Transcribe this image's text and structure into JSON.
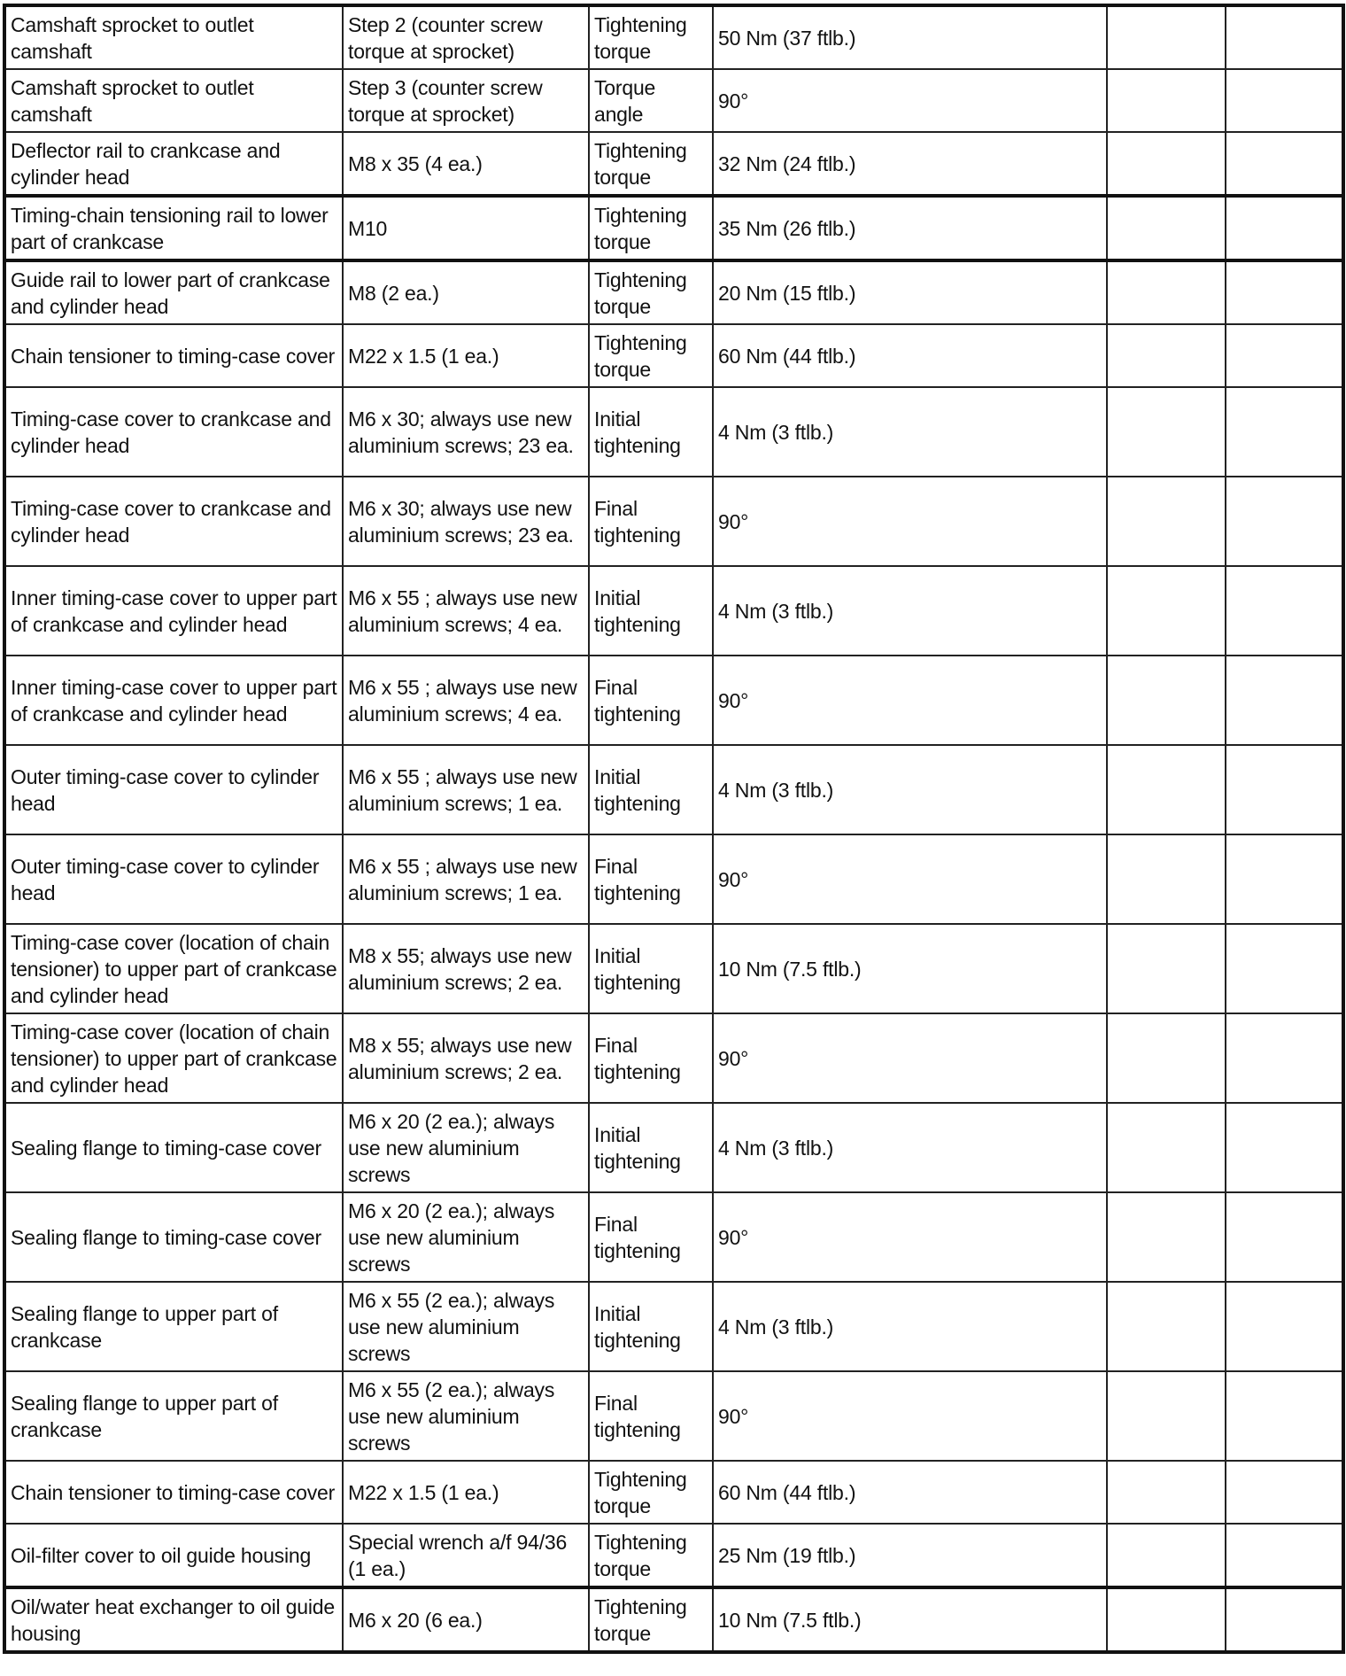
{
  "table": {
    "rows": [
      {
        "component": "Camshaft sprocket to outlet camshaft",
        "spec": "Step 2 (counter screw torque at sprocket)",
        "type": "Tightening torque",
        "value": "50 Nm (37 ftlb.)",
        "lines": 2
      },
      {
        "component": "Camshaft sprocket to outlet camshaft",
        "spec": "Step 3 (counter screw torque at sprocket)",
        "type": "Torque angle",
        "value": "90°",
        "lines": 2
      },
      {
        "component": "Deflector rail to crankcase and cylinder head",
        "spec": "M8 x 35 (4 ea.)",
        "type": "Tightening torque",
        "value": "32 Nm (24 ftlb.)",
        "lines": 2
      },
      {
        "component": "Timing-chain tensioning rail to lower part of crankcase",
        "spec": "M10",
        "type": "Tightening torque",
        "value": "35 Nm (26 ftlb.)",
        "lines": 2,
        "thick": true
      },
      {
        "component": "Guide rail to lower part of crankcase and cylinder head",
        "spec": "M8 (2 ea.)",
        "type": "Tightening torque",
        "value": "20 Nm (15 ftlb.)",
        "lines": 2,
        "thick": true
      },
      {
        "component": "Chain tensioner to timing-case cover",
        "spec": "M22 x 1.5 (1 ea.)",
        "type": "Tightening torque",
        "value": "60 Nm (44 ftlb.)",
        "lines": 2
      },
      {
        "component": "Timing-case cover to crankcase and cylinder head",
        "spec": "M6 x 30; always use new aluminium screws; 23 ea.",
        "type": "Initial tightening",
        "value": "4 Nm (3 ftlb.)",
        "lines": 3
      },
      {
        "component": "Timing-case cover to crankcase and cylinder head",
        "spec": "M6 x 30; always use new aluminium screws; 23 ea.",
        "type": "Final tightening",
        "value": "90°",
        "lines": 3
      },
      {
        "component": "Inner timing-case cover to upper part of crankcase and cylinder head",
        "spec": "M6 x 55 ; always use new aluminium screws; 4 ea.",
        "type": "Initial tightening",
        "value": "4 Nm (3 ftlb.)",
        "lines": 3
      },
      {
        "component": "Inner timing-case cover to upper part of crankcase and cylinder head",
        "spec": "M6 x 55 ; always use new aluminium screws; 4 ea.",
        "type": "Final tightening",
        "value": "90°",
        "lines": 3
      },
      {
        "component": "Outer timing-case cover to cylinder head",
        "spec": "M6 x 55 ; always use new aluminium screws; 1 ea.",
        "type": "Initial tightening",
        "value": "4 Nm (3 ftlb.)",
        "lines": 3
      },
      {
        "component": "Outer timing-case cover to cylinder head",
        "spec": "M6 x 55 ; always use new aluminium screws; 1 ea.",
        "type": "Final tightening",
        "value": "90°",
        "lines": 3
      },
      {
        "component": "Timing-case cover (location of chain tensioner) to upper part of crankcase and cylinder head",
        "spec": "M8 x 55; always use new aluminium screws; 2 ea.",
        "type": "Initial tightening",
        "value": "10 Nm (7.5 ftlb.)",
        "lines": 3
      },
      {
        "component": "Timing-case cover (location of chain tensioner) to upper part of crankcase and cylinder head",
        "spec": "M8 x 55; always use new aluminium screws; 2 ea.",
        "type": "Final tightening",
        "value": "90°",
        "lines": 3
      },
      {
        "component": "Sealing flange to timing-case cover",
        "spec": "M6 x 20 (2 ea.); always use new aluminium screws",
        "type": "Initial tightening",
        "value": "4 Nm (3 ftlb.)",
        "lines": 3
      },
      {
        "component": "Sealing flange to timing-case cover",
        "spec": "M6 x 20 (2 ea.); always use new aluminium screws",
        "type": "Final tightening",
        "value": "90°",
        "lines": 3
      },
      {
        "component": "Sealing flange to upper part of crankcase",
        "spec": "M6 x 55 (2 ea.); always use new aluminium screws",
        "type": "Initial tightening",
        "value": "4 Nm (3 ftlb.)",
        "lines": 3
      },
      {
        "component": "Sealing flange to upper part of crankcase",
        "spec": "M6 x 55 (2 ea.); always use new aluminium screws",
        "type": "Final tightening",
        "value": "90°",
        "lines": 3
      },
      {
        "component": "Chain tensioner to timing-case cover",
        "spec": "M22 x 1.5 (1 ea.)",
        "type": "Tightening torque",
        "value": "60 Nm (44 ftlb.)",
        "lines": 2
      },
      {
        "component": "Oil-filter cover to oil guide housing",
        "spec": "Special wrench a/f 94/36 (1 ea.)",
        "type": "Tightening torque",
        "value": "25 Nm (19 ftlb.)",
        "lines": 2
      },
      {
        "component": "Oil/water heat exchanger to oil guide housing",
        "spec": "M6 x 20 (6 ea.)",
        "type": "Tightening torque",
        "value": "10 Nm (7.5 ftlb.)",
        "lines": 2,
        "thick": true
      }
    ]
  }
}
